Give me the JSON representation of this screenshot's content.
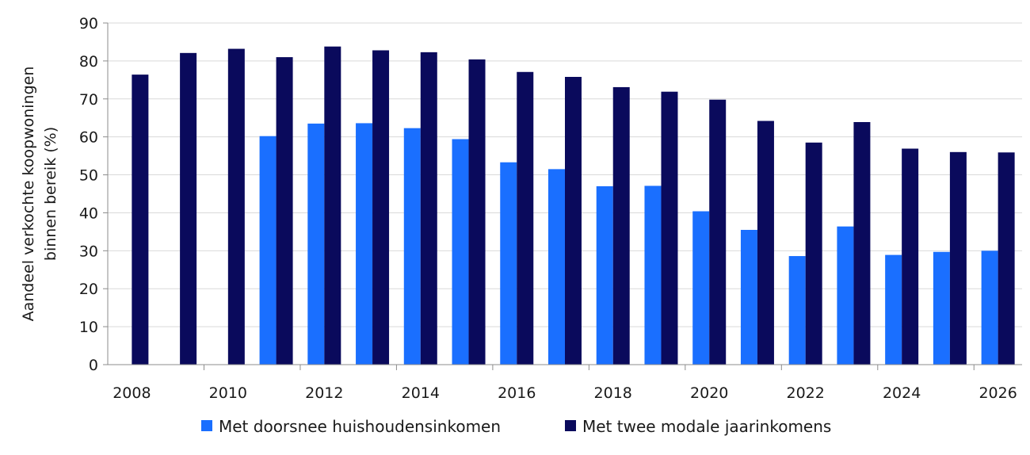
{
  "chart_data": {
    "type": "bar",
    "title": "",
    "xlabel": "",
    "ylabel_lines": [
      "Aandeel verkochte koopwoningen",
      "binnen bereik (%)"
    ],
    "ylim": [
      0,
      90
    ],
    "yticks": [
      0,
      10,
      20,
      30,
      40,
      50,
      60,
      70,
      80,
      90
    ],
    "grid": true,
    "legend_position": "bottom",
    "categories": [
      2008,
      2009,
      2010,
      2011,
      2012,
      2013,
      2014,
      2015,
      2016,
      2017,
      2018,
      2019,
      2020,
      2021,
      2022,
      2023,
      2024,
      2025,
      2026
    ],
    "xtick_labels": [
      "2008",
      "2010",
      "2012",
      "2014",
      "2016",
      "2018",
      "2020",
      "2022",
      "2024",
      "2026"
    ],
    "series": [
      {
        "name": "Met doorsnee huishoudensinkomen",
        "color": "#1a6fff",
        "values": [
          null,
          null,
          null,
          60.2,
          63.5,
          63.6,
          62.3,
          59.4,
          53.3,
          51.5,
          47.0,
          47.1,
          40.4,
          35.5,
          28.6,
          36.4,
          28.9,
          29.7,
          30.0
        ]
      },
      {
        "name": "Met twee modale jaarinkomens",
        "color": "#0a0a5c",
        "values": [
          76.4,
          82.1,
          83.2,
          81.0,
          83.8,
          82.8,
          82.3,
          80.4,
          77.1,
          75.8,
          73.1,
          71.9,
          69.8,
          64.2,
          58.5,
          63.9,
          56.9,
          56.0,
          55.9
        ]
      }
    ]
  }
}
